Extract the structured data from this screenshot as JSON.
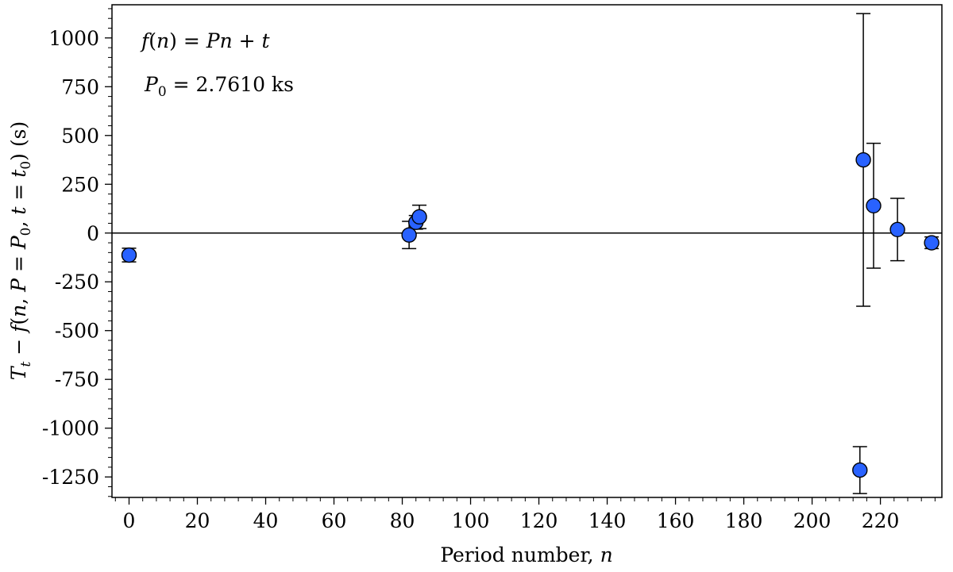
{
  "chart_data": {
    "type": "scatter",
    "xlabel": "Period number, n",
    "ylabel": "T_t − f(n, P = P_0, t = t_0) (s)",
    "xlim": [
      -5,
      238
    ],
    "ylim": [
      -1355,
      1170
    ],
    "x_ticks": [
      0,
      20,
      40,
      60,
      80,
      100,
      120,
      140,
      160,
      180,
      200,
      220
    ],
    "x_tick_labels": [
      "0",
      "20",
      "40",
      "60",
      "80",
      "100",
      "120",
      "140",
      "160",
      "180",
      "200",
      "220"
    ],
    "y_ticks": [
      1000,
      750,
      500,
      250,
      0,
      -250,
      -500,
      -750,
      -1000,
      -1250
    ],
    "y_tick_labels": [
      "1000",
      "750",
      "500",
      "250",
      "0",
      "-250",
      "-500",
      "-750",
      "-1000",
      "-1250"
    ],
    "zero_line": true,
    "grid": false,
    "marker_color": "#2962ff",
    "annotations": [
      "f(n) = Pn + t",
      "P₀ = 2.7610 ks"
    ],
    "points": [
      {
        "x": 0,
        "y": -113,
        "err": 35
      },
      {
        "x": 82,
        "y": -10,
        "err": 70
      },
      {
        "x": 84,
        "y": 55,
        "err": 35
      },
      {
        "x": 85,
        "y": 83,
        "err": 60
      },
      {
        "x": 214,
        "y": -1215,
        "err": 120
      },
      {
        "x": 215,
        "y": 375,
        "err": 750
      },
      {
        "x": 218,
        "y": 140,
        "err": 320
      },
      {
        "x": 225,
        "y": 18,
        "err": 160
      },
      {
        "x": 235,
        "y": -50,
        "err": 30
      }
    ]
  }
}
